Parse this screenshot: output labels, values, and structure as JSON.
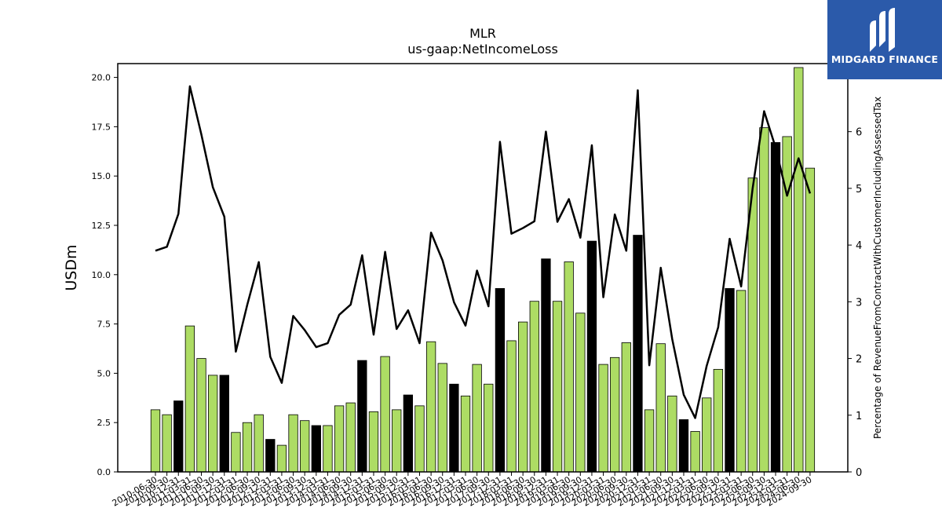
{
  "logo": {
    "text": "MIDGARD FINANCE",
    "bg_color": "#2b5aaa"
  },
  "chart_data": {
    "type": "bar",
    "title": "MLR",
    "subtitle": "us-gaap:NetIncomeLoss",
    "ylabel": "USDm",
    "ylabel_right": "Percentage of RevenueFromContractWithCustomerIncludingAssessedTax",
    "ylim": [
      0,
      20.7
    ],
    "ylim_right": [
      0,
      7.2
    ],
    "yticks": [
      0.0,
      2.5,
      5.0,
      7.5,
      10.0,
      12.5,
      15.0,
      17.5,
      20.0
    ],
    "yticks_right": [
      0,
      1,
      2,
      3,
      4,
      5,
      6
    ],
    "bar_colors": {
      "quarter": "#addc64",
      "fiscal_year": "#000000"
    },
    "line_color": "#000000",
    "categories": [
      "2010-06-30",
      "2010-09-30",
      "2010-12-31",
      "2011-03-31",
      "2011-06-30",
      "2011-09-30",
      "2011-12-31",
      "2012-03-31",
      "2012-06-30",
      "2012-09-30",
      "2012-12-31",
      "2013-03-31",
      "2013-06-30",
      "2013-09-30",
      "2013-12-31",
      "2014-03-31",
      "2014-06-30",
      "2014-09-30",
      "2014-12-31",
      "2015-03-31",
      "2015-06-30",
      "2015-09-30",
      "2015-12-31",
      "2016-03-31",
      "2016-06-30",
      "2016-09-30",
      "2016-12-31",
      "2017-03-31",
      "2017-06-30",
      "2017-09-30",
      "2017-12-31",
      "2018-03-31",
      "2018-06-30",
      "2018-09-30",
      "2018-12-31",
      "2019-03-31",
      "2019-06-30",
      "2019-09-30",
      "2019-12-31",
      "2020-03-31",
      "2020-06-30",
      "2020-09-30",
      "2020-12-31",
      "2021-03-31",
      "2021-06-30",
      "2021-09-30",
      "2021-12-31",
      "2022-03-31",
      "2022-06-30",
      "2022-09-30",
      "2022-12-31",
      "2023-03-31",
      "2023-06-30",
      "2023-09-30",
      "2023-12-31",
      "2024-03-31",
      "2024-06-30",
      "2024-09-30"
    ],
    "series": [
      {
        "type": "bar",
        "values": [
          3.15,
          2.9,
          3.6,
          7.4,
          5.75,
          4.9,
          4.9,
          2.0,
          2.5,
          2.9,
          1.65,
          1.35,
          2.9,
          2.6,
          2.35,
          2.35,
          3.35,
          3.5,
          5.65,
          3.05,
          5.85,
          3.15,
          3.9,
          3.35,
          6.6,
          5.5,
          4.45,
          3.85,
          5.45,
          4.45,
          9.3,
          6.65,
          7.6,
          8.65,
          10.8,
          8.65,
          10.65,
          8.05,
          11.7,
          5.45,
          5.8,
          6.55,
          12.0,
          3.15,
          6.5,
          3.85,
          2.65,
          2.05,
          3.75,
          5.2,
          9.3,
          9.2,
          14.9,
          17.45,
          16.7,
          17.0,
          20.5,
          15.4
        ],
        "fiscal_year_end": [
          false,
          false,
          true,
          false,
          false,
          false,
          true,
          false,
          false,
          false,
          true,
          false,
          false,
          false,
          true,
          false,
          false,
          false,
          true,
          false,
          false,
          false,
          true,
          false,
          false,
          false,
          true,
          false,
          false,
          false,
          true,
          false,
          false,
          false,
          true,
          false,
          false,
          false,
          true,
          false,
          false,
          false,
          true,
          false,
          false,
          false,
          true,
          false,
          false,
          false,
          true,
          false,
          false,
          false,
          true,
          false,
          false,
          false
        ]
      },
      {
        "type": "line",
        "axis": "right",
        "values": [
          3.9,
          3.97,
          4.55,
          6.8,
          5.95,
          5.02,
          4.5,
          2.12,
          2.95,
          3.7,
          2.03,
          1.57,
          2.75,
          2.5,
          2.2,
          2.27,
          2.77,
          2.95,
          3.82,
          2.42,
          3.88,
          2.52,
          2.85,
          2.27,
          4.22,
          3.73,
          2.99,
          2.58,
          3.55,
          2.92,
          5.82,
          4.2,
          4.3,
          4.42,
          6.0,
          4.41,
          4.81,
          4.13,
          5.76,
          3.08,
          4.54,
          3.9,
          6.73,
          1.88,
          3.6,
          2.34,
          1.36,
          0.95,
          1.87,
          2.55,
          4.11,
          3.27,
          5.0,
          6.36,
          5.72,
          4.87,
          5.53,
          4.91
        ]
      }
    ]
  }
}
